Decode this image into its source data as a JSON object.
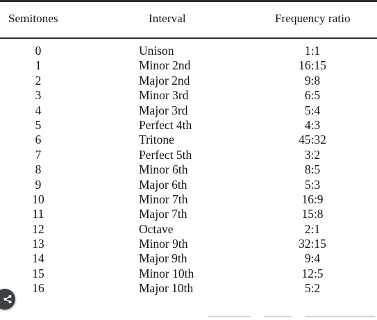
{
  "table": {
    "headers": {
      "semitones": "Semitones",
      "interval": "Interval",
      "frequency_ratio": "Frequency ratio"
    },
    "rows": [
      {
        "semitones": "0",
        "interval": "Unison",
        "ratio": "1:1"
      },
      {
        "semitones": "1",
        "interval": "Minor 2nd",
        "ratio": "16:15"
      },
      {
        "semitones": "2",
        "interval": "Major 2nd",
        "ratio": "9:8"
      },
      {
        "semitones": "3",
        "interval": "Minor 3rd",
        "ratio": "6:5"
      },
      {
        "semitones": "4",
        "interval": "Major 3rd",
        "ratio": "5:4"
      },
      {
        "semitones": "5",
        "interval": "Perfect 4th",
        "ratio": "4:3"
      },
      {
        "semitones": "6",
        "interval": "Tritone",
        "ratio": "45:32"
      },
      {
        "semitones": "7",
        "interval": "Perfect 5th",
        "ratio": "3:2"
      },
      {
        "semitones": "8",
        "interval": "Minor 6th",
        "ratio": "8:5"
      },
      {
        "semitones": "9",
        "interval": "Major 6th",
        "ratio": "5:3"
      },
      {
        "semitones": "10",
        "interval": "Minor 7th",
        "ratio": "16:9"
      },
      {
        "semitones": "11",
        "interval": "Major 7th",
        "ratio": "15:8"
      },
      {
        "semitones": "12",
        "interval": "Octave",
        "ratio": "2:1"
      },
      {
        "semitones": "13",
        "interval": "Minor 9th",
        "ratio": "32:15"
      },
      {
        "semitones": "14",
        "interval": "Major 9th",
        "ratio": "9:4"
      },
      {
        "semitones": "15",
        "interval": "Minor 10th",
        "ratio": "12:5"
      },
      {
        "semitones": "16",
        "interval": "Major 10th",
        "ratio": "5:2"
      }
    ]
  },
  "overlay": {
    "icon": "share-icon"
  }
}
